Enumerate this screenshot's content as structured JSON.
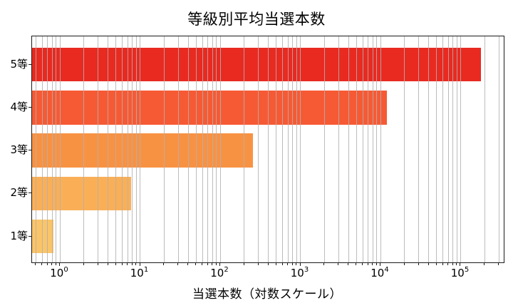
{
  "chart_data": {
    "type": "bar",
    "orientation": "horizontal",
    "title": "等級別平均当選本数",
    "xlabel": "当選本数（対数スケール）",
    "categories": [
      "1等",
      "2等",
      "3等",
      "4等",
      "5等"
    ],
    "values": [
      0.84,
      7.8,
      256,
      12000,
      180000
    ],
    "bar_colors": [
      "#fac468",
      "#faaf57",
      "#f89243",
      "#f65a34",
      "#e82a21"
    ],
    "xscale": "log",
    "xlim": [
      0.45,
      345000
    ],
    "grid": true,
    "grid_color": "#b0b0b0",
    "axis_color": "#1a1a1a",
    "x_ticks": [
      {
        "value": 1,
        "base": "10",
        "exp": "0"
      },
      {
        "value": 10,
        "base": "10",
        "exp": "1"
      },
      {
        "value": 100,
        "base": "10",
        "exp": "2"
      },
      {
        "value": 1000,
        "base": "10",
        "exp": "3"
      },
      {
        "value": 10000,
        "base": "10",
        "exp": "4"
      },
      {
        "value": 100000,
        "base": "10",
        "exp": "5"
      }
    ]
  }
}
